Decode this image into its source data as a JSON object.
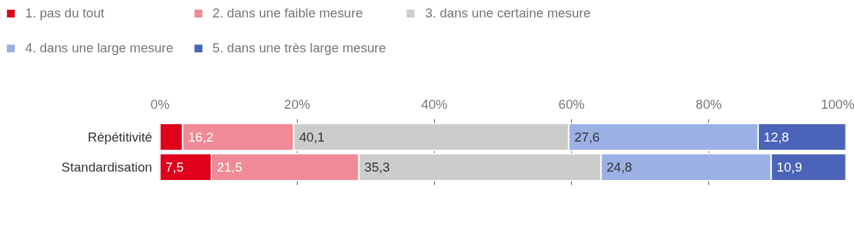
{
  "chart_data": {
    "type": "bar",
    "orientation": "horizontal",
    "stacked": true,
    "categories": [
      "Répétitivité",
      "Standardisation"
    ],
    "series": [
      {
        "name": "1. pas du tout",
        "color": "#e0001b",
        "values": [
          3.3,
          7.5
        ],
        "value_labels": [
          null,
          "7,5"
        ]
      },
      {
        "name": "2. dans une faible mesure",
        "color": "#f08a96",
        "values": [
          16.2,
          21.5
        ],
        "value_labels": [
          "16,2",
          "21,5"
        ]
      },
      {
        "name": "3. dans une certaine mesure",
        "color": "#cccccc",
        "values": [
          40.1,
          35.3
        ],
        "value_labels": [
          "40,1",
          "35,3"
        ]
      },
      {
        "name": "4. dans une large mesure",
        "color": "#9bb0e5",
        "values": [
          27.6,
          24.8
        ],
        "value_labels": [
          "27,6",
          "24,8"
        ]
      },
      {
        "name": "5. dans une très large mesure",
        "color": "#4b63b8",
        "values": [
          12.8,
          10.9
        ],
        "value_labels": [
          "12,8",
          "10,9"
        ]
      }
    ],
    "xlim": [
      0,
      100
    ],
    "xticks": [
      {
        "value": 0,
        "label": "0%"
      },
      {
        "value": 20,
        "label": "20%"
      },
      {
        "value": 40,
        "label": "40%"
      },
      {
        "value": 60,
        "label": "60%"
      },
      {
        "value": 80,
        "label": "80%"
      },
      {
        "value": 100,
        "label": "100%"
      }
    ],
    "grid": "x",
    "legend": "top"
  }
}
